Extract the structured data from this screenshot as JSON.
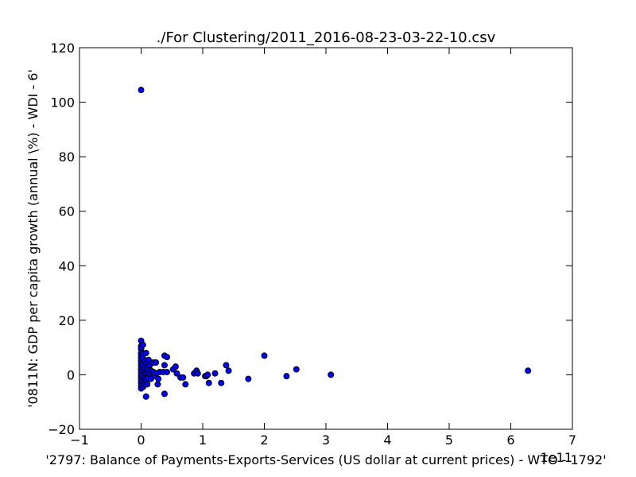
{
  "chart_data": {
    "type": "scatter",
    "title": "./For Clustering/2011_2016-08-23-03-22-10.csv",
    "xlabel": "'2797: Balance of Payments-Exports-Services (US dollar at current prices) - WTO - 1792'",
    "ylabel": "'0811N: GDP per capita growth  (annual \\%) - WDI - 6'",
    "x_offset_label": "1e11",
    "xlim": [
      -1,
      7
    ],
    "ylim": [
      -20,
      120
    ],
    "xticks": [
      -1,
      0,
      1,
      2,
      3,
      4,
      5,
      6,
      7
    ],
    "yticks": [
      -20,
      0,
      20,
      40,
      60,
      80,
      100,
      120
    ],
    "xtick_labels": [
      "−1",
      "0",
      "1",
      "2",
      "3",
      "4",
      "5",
      "6",
      "7"
    ],
    "ytick_labels": [
      "−20",
      "0",
      "20",
      "40",
      "60",
      "80",
      "100",
      "120"
    ],
    "grid": false,
    "marker_color": "#0000ff",
    "marker_edge": "#000000",
    "points": [
      {
        "x": 0.0,
        "y": 104.5
      },
      {
        "x": 0.0,
        "y": 12.5
      },
      {
        "x": 0.0,
        "y": 10.5
      },
      {
        "x": 0.0,
        "y": 9.5
      },
      {
        "x": 0.0,
        "y": 8.0
      },
      {
        "x": 0.0,
        "y": 7.0
      },
      {
        "x": 0.0,
        "y": 6.0
      },
      {
        "x": 0.0,
        "y": 5.0
      },
      {
        "x": 0.0,
        "y": 4.0
      },
      {
        "x": 0.0,
        "y": 3.0
      },
      {
        "x": 0.0,
        "y": 2.0
      },
      {
        "x": 0.0,
        "y": 1.0
      },
      {
        "x": 0.0,
        "y": 0.0
      },
      {
        "x": 0.0,
        "y": -1.0
      },
      {
        "x": 0.0,
        "y": -2.0
      },
      {
        "x": 0.0,
        "y": -3.0
      },
      {
        "x": 0.0,
        "y": -4.0
      },
      {
        "x": 0.0,
        "y": -5.0
      },
      {
        "x": 0.03,
        "y": 11.0
      },
      {
        "x": 0.03,
        "y": 7.5
      },
      {
        "x": 0.03,
        "y": 6.0
      },
      {
        "x": 0.03,
        "y": 3.5
      },
      {
        "x": 0.03,
        "y": 1.5
      },
      {
        "x": 0.03,
        "y": -0.5
      },
      {
        "x": 0.03,
        "y": -2.5
      },
      {
        "x": 0.03,
        "y": -4.5
      },
      {
        "x": 0.06,
        "y": 5.0
      },
      {
        "x": 0.06,
        "y": 2.5
      },
      {
        "x": 0.06,
        "y": 0.5
      },
      {
        "x": 0.06,
        "y": -1.5
      },
      {
        "x": 0.06,
        "y": -3.5
      },
      {
        "x": 0.08,
        "y": 8.0
      },
      {
        "x": 0.08,
        "y": 4.0
      },
      {
        "x": 0.08,
        "y": 1.0
      },
      {
        "x": 0.08,
        "y": -2.0
      },
      {
        "x": 0.08,
        "y": -8.0
      },
      {
        "x": 0.1,
        "y": 3.0
      },
      {
        "x": 0.1,
        "y": 0.5
      },
      {
        "x": 0.1,
        "y": -3.5
      },
      {
        "x": 0.12,
        "y": 5.5
      },
      {
        "x": 0.12,
        "y": 2.0
      },
      {
        "x": 0.12,
        "y": -1.0
      },
      {
        "x": 0.14,
        "y": 3.5
      },
      {
        "x": 0.14,
        "y": 0.5
      },
      {
        "x": 0.16,
        "y": 1.5
      },
      {
        "x": 0.16,
        "y": -1.5
      },
      {
        "x": 0.2,
        "y": 4.5
      },
      {
        "x": 0.2,
        "y": 1.0
      },
      {
        "x": 0.22,
        "y": -0.5
      },
      {
        "x": 0.24,
        "y": 4.5
      },
      {
        "x": 0.25,
        "y": 0.5
      },
      {
        "x": 0.27,
        "y": -3.5
      },
      {
        "x": 0.28,
        "y": -1.5
      },
      {
        "x": 0.3,
        "y": 1.0
      },
      {
        "x": 0.36,
        "y": 1.0
      },
      {
        "x": 0.38,
        "y": 7.0
      },
      {
        "x": 0.38,
        "y": 3.5
      },
      {
        "x": 0.38,
        "y": -7.0
      },
      {
        "x": 0.42,
        "y": 6.5
      },
      {
        "x": 0.42,
        "y": 1.0
      },
      {
        "x": 0.52,
        "y": 2.0
      },
      {
        "x": 0.56,
        "y": 3.0
      },
      {
        "x": 0.58,
        "y": 0.5
      },
      {
        "x": 0.64,
        "y": -1.0
      },
      {
        "x": 0.68,
        "y": -1.0
      },
      {
        "x": 0.72,
        "y": -3.5
      },
      {
        "x": 0.86,
        "y": 0.5
      },
      {
        "x": 0.9,
        "y": 1.5
      },
      {
        "x": 0.92,
        "y": 0.5
      },
      {
        "x": 1.04,
        "y": -0.5
      },
      {
        "x": 1.06,
        "y": -0.5
      },
      {
        "x": 1.08,
        "y": 0.0
      },
      {
        "x": 1.1,
        "y": -3.0
      },
      {
        "x": 1.2,
        "y": 0.5
      },
      {
        "x": 1.3,
        "y": -3.0
      },
      {
        "x": 1.38,
        "y": 3.5
      },
      {
        "x": 1.42,
        "y": 1.5
      },
      {
        "x": 1.74,
        "y": -1.5
      },
      {
        "x": 2.0,
        "y": 7.0
      },
      {
        "x": 2.36,
        "y": -0.5
      },
      {
        "x": 2.52,
        "y": 2.0
      },
      {
        "x": 3.08,
        "y": 0.0
      },
      {
        "x": 6.28,
        "y": 1.5
      }
    ]
  }
}
